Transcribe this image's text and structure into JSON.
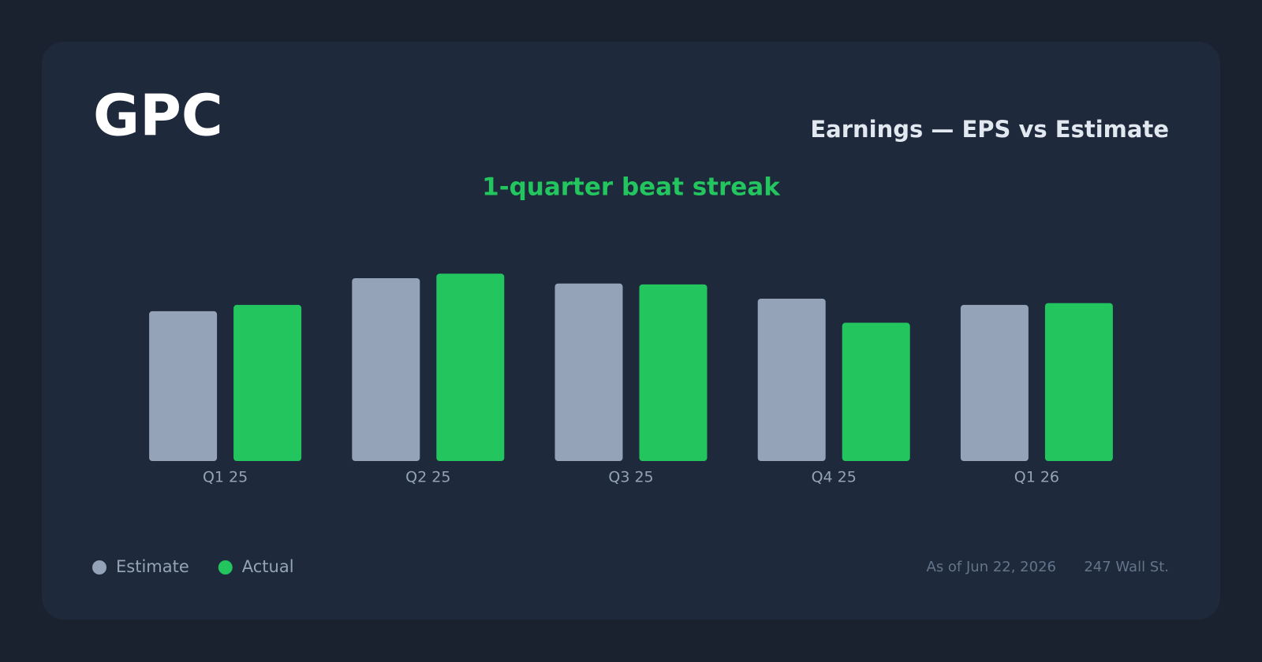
{
  "chart_data": {
    "type": "bar",
    "title": "GPC",
    "subtitle": "Earnings — EPS vs Estimate",
    "annotation": "1-quarter beat streak",
    "categories": [
      "Q1 25",
      "Q2 25",
      "Q3 25",
      "Q4 25",
      "Q1 26"
    ],
    "series": [
      {
        "name": "Estimate",
        "color": "#94a3b8",
        "values": [
          1.68,
          2.05,
          1.99,
          1.82,
          1.75
        ]
      },
      {
        "name": "Actual",
        "color": "#22c55e",
        "values": [
          1.75,
          2.1,
          1.98,
          1.55,
          1.77
        ]
      }
    ],
    "ylim": [
      0,
      2.5
    ],
    "grid": false,
    "legend": "bottom-left",
    "date_note": "As of Jun 22, 2026",
    "source": "247 Wall St."
  }
}
